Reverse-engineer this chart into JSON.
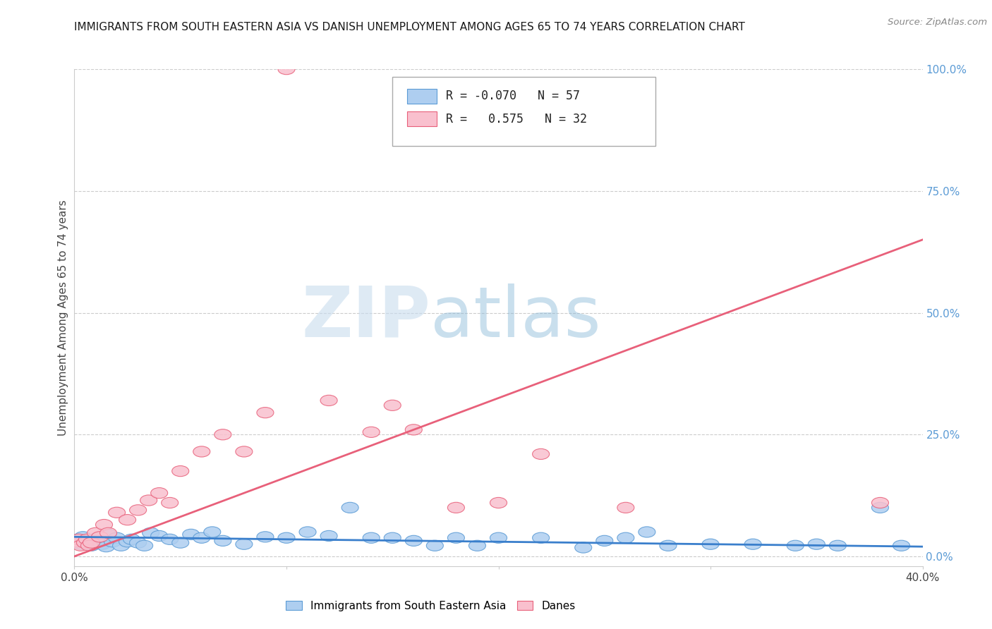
{
  "title": "IMMIGRANTS FROM SOUTH EASTERN ASIA VS DANISH UNEMPLOYMENT AMONG AGES 65 TO 74 YEARS CORRELATION CHART",
  "source": "Source: ZipAtlas.com",
  "ylabel_left": "Unemployment Among Ages 65 to 74 years",
  "color_blue_fill": "#AECEF0",
  "color_blue_edge": "#5B9BD5",
  "color_pink_fill": "#F9C0CE",
  "color_pink_edge": "#E8607A",
  "color_trend_blue": "#3A7FCC",
  "color_trend_pink": "#E8607A",
  "color_grid": "#CCCCCC",
  "color_right_axis": "#5B9BD5",
  "xmin": 0.0,
  "xmax": 0.4,
  "ymin": -0.02,
  "ymax": 1.0,
  "x_ticks": [
    0.0,
    0.1,
    0.2,
    0.3,
    0.4
  ],
  "x_tick_labels": [
    "0.0%",
    "",
    "",
    "",
    "40.0%"
  ],
  "y_ticks_right": [
    0.0,
    0.25,
    0.5,
    0.75,
    1.0
  ],
  "y_tick_labels_right": [
    "0.0%",
    "25.0%",
    "50.0%",
    "75.0%",
    "100.0%"
  ],
  "R_blue": -0.07,
  "N_blue": 57,
  "R_pink": 0.575,
  "N_pink": 32,
  "legend_label_blue": "Immigrants from South Eastern Asia",
  "legend_label_pink": "Danes",
  "blue_x": [
    0.001,
    0.002,
    0.003,
    0.004,
    0.005,
    0.006,
    0.007,
    0.008,
    0.009,
    0.01,
    0.011,
    0.012,
    0.013,
    0.014,
    0.015,
    0.016,
    0.018,
    0.02,
    0.022,
    0.025,
    0.027,
    0.03,
    0.033,
    0.036,
    0.04,
    0.045,
    0.05,
    0.055,
    0.06,
    0.065,
    0.07,
    0.08,
    0.09,
    0.1,
    0.11,
    0.12,
    0.13,
    0.14,
    0.15,
    0.16,
    0.18,
    0.2,
    0.22,
    0.25,
    0.27,
    0.3,
    0.32,
    0.34,
    0.36,
    0.38,
    0.39,
    0.35,
    0.28,
    0.24,
    0.19,
    0.17,
    0.26
  ],
  "blue_y": [
    0.03,
    0.035,
    0.025,
    0.04,
    0.028,
    0.032,
    0.027,
    0.022,
    0.033,
    0.028,
    0.038,
    0.03,
    0.025,
    0.032,
    0.02,
    0.045,
    0.03,
    0.038,
    0.022,
    0.03,
    0.035,
    0.028,
    0.022,
    0.048,
    0.042,
    0.035,
    0.028,
    0.045,
    0.038,
    0.05,
    0.032,
    0.025,
    0.04,
    0.038,
    0.05,
    0.042,
    0.1,
    0.038,
    0.038,
    0.032,
    0.038,
    0.038,
    0.038,
    0.032,
    0.05,
    0.025,
    0.025,
    0.022,
    0.022,
    0.1,
    0.022,
    0.025,
    0.022,
    0.018,
    0.022,
    0.022,
    0.038
  ],
  "pink_x": [
    0.001,
    0.002,
    0.003,
    0.005,
    0.006,
    0.007,
    0.008,
    0.01,
    0.012,
    0.014,
    0.016,
    0.02,
    0.025,
    0.03,
    0.035,
    0.04,
    0.045,
    0.05,
    0.06,
    0.07,
    0.08,
    0.09,
    0.1,
    0.12,
    0.14,
    0.16,
    0.18,
    0.2,
    0.22,
    0.26,
    0.38,
    0.15
  ],
  "pink_y": [
    0.03,
    0.035,
    0.022,
    0.028,
    0.035,
    0.022,
    0.028,
    0.048,
    0.04,
    0.065,
    0.048,
    0.09,
    0.075,
    0.095,
    0.115,
    0.13,
    0.11,
    0.175,
    0.215,
    0.25,
    0.215,
    0.295,
    1.0,
    0.32,
    0.255,
    0.26,
    0.1,
    0.11,
    0.21,
    0.1,
    0.11,
    0.31
  ],
  "pink_trend_y0": 0.0,
  "pink_trend_y1": 0.65,
  "blue_trend_y0": 0.04,
  "blue_trend_y1": 0.02
}
